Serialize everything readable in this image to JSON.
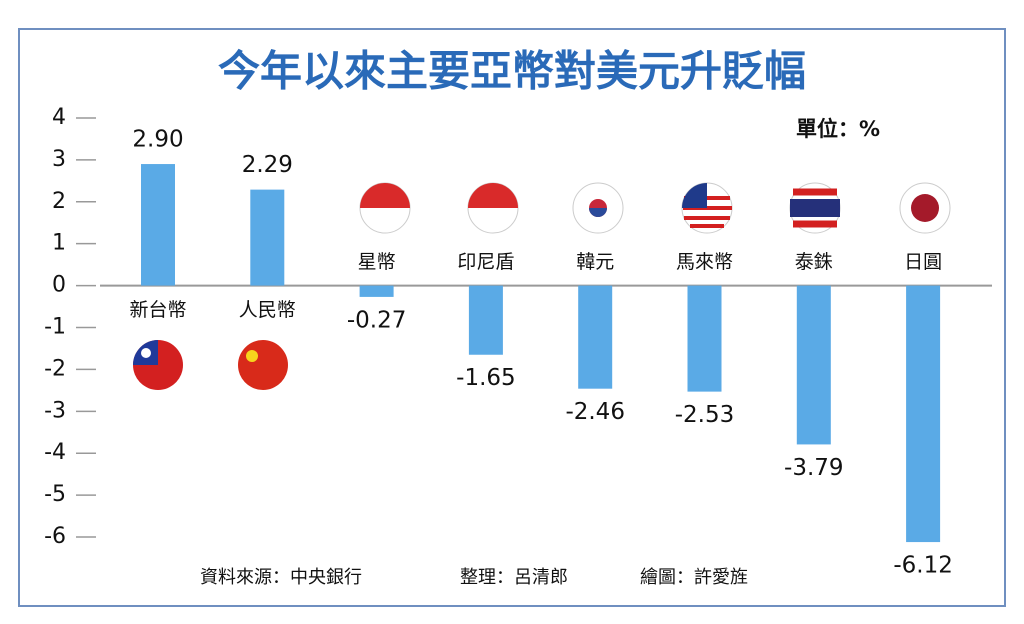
{
  "chart_data": {
    "type": "bar",
    "title": "今年以來主要亞幣對美元升貶幅",
    "unit": "單位：%",
    "categories": [
      "新台幣",
      "人民幣",
      "星幣",
      "印尼盾",
      "韓元",
      "馬來幣",
      "泰銖",
      "日圓"
    ],
    "values": [
      2.9,
      2.29,
      -0.27,
      -1.65,
      -2.46,
      -2.53,
      -3.79,
      -6.12
    ],
    "value_labels": [
      "2.90",
      "2.29",
      "-0.27",
      "-1.65",
      "-2.46",
      "-2.53",
      "-3.79",
      "-6.12"
    ],
    "color": "#5aaae6",
    "ylim": [
      -6.5,
      4.5
    ],
    "yticks": [
      -6,
      -5,
      -4,
      -3,
      -2,
      -1,
      0,
      1,
      2,
      3,
      4
    ],
    "notes": [
      "資料來源：中央銀行",
      "整理：呂清郎",
      "繪圖：許愛旌"
    ]
  }
}
